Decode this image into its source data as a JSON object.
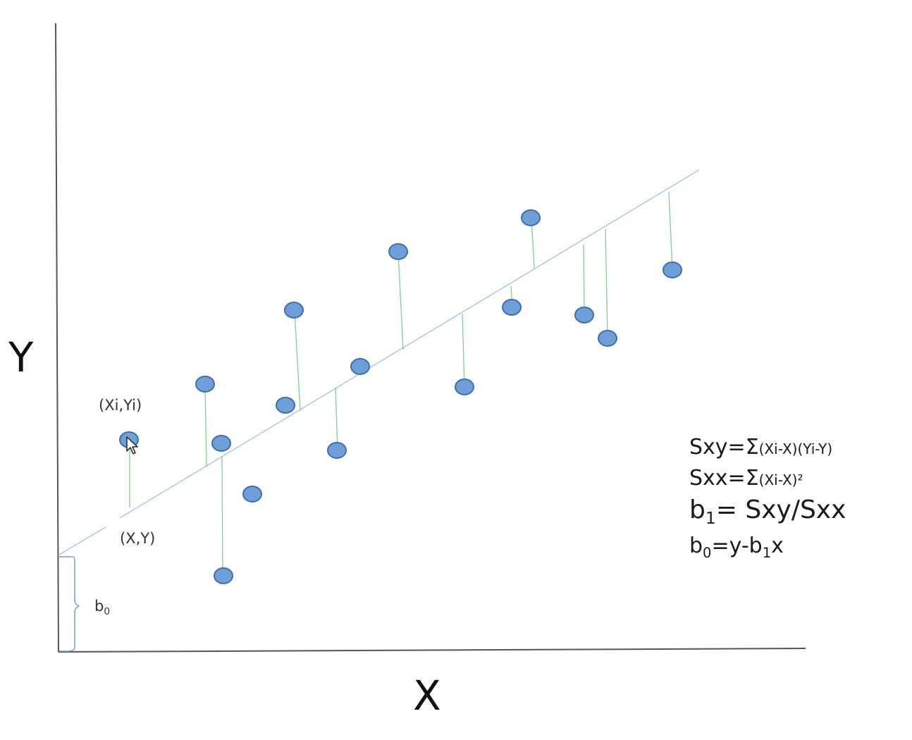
{
  "axes": {
    "x_label": "X",
    "y_label": "Y"
  },
  "labels": {
    "point_label": "(Xi,Yi)",
    "mean_label": "(X,Y)",
    "intercept_label": "b",
    "intercept_sub": "0"
  },
  "formulas": {
    "sxy_lhs": "Sxy=Σ",
    "sxy_rhs": "(Xi-X)(Yi-Y)",
    "sxx_lhs": "Sxx=Σ",
    "sxx_rhs": "(Xi-X)²",
    "b1_a": "b",
    "b1_sub": "1",
    "b1_b": "= Sxy/Sxx",
    "b0_a": "b",
    "b0_sub": "0",
    "b0_b": "=y-b",
    "b0_sub2": "1",
    "b0_c": "x"
  },
  "colors": {
    "point_fill": "#6f9fd8",
    "point_stroke": "#3f6fa8",
    "regression_line": "#a9c8e8",
    "residual_line": "#7fd08f",
    "axis": "#555555"
  }
}
